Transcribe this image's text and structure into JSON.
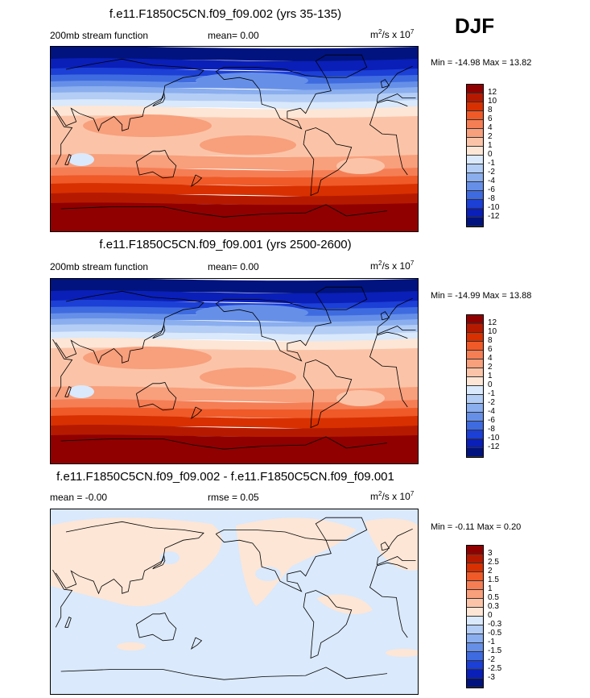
{
  "season": "DJF",
  "panels": [
    {
      "title": "f.e11.F1850C5CN.f09_f09.002 (yrs 35-135)",
      "left_label": "200mb stream function",
      "mid_label": "mean=  0.00",
      "units_base": "m",
      "units_exp1": "2",
      "units_mid": "/s x 10",
      "units_exp2": "7",
      "minmax": "Min = -14.98 Max =  13.82",
      "colorbar_labels": [
        "12",
        "10",
        "8",
        "6",
        "4",
        "2",
        "1",
        "0",
        "-1",
        "-2",
        "-4",
        "-6",
        "-8",
        "-10",
        "-12"
      ],
      "colorbar_colors": [
        "#900000",
        "#b51a00",
        "#d83000",
        "#ef5a28",
        "#f57e55",
        "#f89f7c",
        "#fbc4a8",
        "#fde6d6",
        "#dae9fb",
        "#b3cdf5",
        "#8aaeee",
        "#6690e8",
        "#3f6be0",
        "#1c3fd6",
        "#0a1fb8",
        "#00137e"
      ],
      "map": "emean"
    },
    {
      "title": "f.e11.F1850C5CN.f09_f09.001 (yrs 2500-2600)",
      "left_label": "200mb stream function",
      "mid_label": "mean=  0.00",
      "units_base": "m",
      "units_exp1": "2",
      "units_mid": "/s x 10",
      "units_exp2": "7",
      "minmax": "Min = -14.99 Max =  13.88",
      "colorbar_labels": [
        "12",
        "10",
        "8",
        "6",
        "4",
        "2",
        "1",
        "0",
        "-1",
        "-2",
        "-4",
        "-6",
        "-8",
        "-10",
        "-12"
      ],
      "colorbar_colors": [
        "#900000",
        "#b51a00",
        "#d83000",
        "#ef5a28",
        "#f57e55",
        "#f89f7c",
        "#fbc4a8",
        "#fde6d6",
        "#dae9fb",
        "#b3cdf5",
        "#8aaeee",
        "#6690e8",
        "#3f6be0",
        "#1c3fd6",
        "#0a1fb8",
        "#00137e"
      ],
      "map": "emean"
    },
    {
      "title": "f.e11.F1850C5CN.f09_f09.002 - f.e11.F1850C5CN.f09_f09.001",
      "left_label": "mean =  -0.00",
      "mid_label": "rmse =   0.05",
      "units_base": "m",
      "units_exp1": "2",
      "units_mid": "/s x 10",
      "units_exp2": "7",
      "minmax": "Min =  -0.11 Max =   0.20",
      "colorbar_labels": [
        "3",
        "2.5",
        "2",
        "1.5",
        "1",
        "0.5",
        "0.3",
        "0",
        "-0.3",
        "-0.5",
        "-1",
        "-1.5",
        "-2",
        "-2.5",
        "-3"
      ],
      "colorbar_colors": [
        "#900000",
        "#b51a00",
        "#d83000",
        "#ef5a28",
        "#f57e55",
        "#f89f7c",
        "#fbc4a8",
        "#fde6d6",
        "#dae9fb",
        "#b3cdf5",
        "#8aaeee",
        "#6690e8",
        "#3f6be0",
        "#1c3fd6",
        "#0a1fb8",
        "#00137e"
      ],
      "map": "diff"
    }
  ]
}
